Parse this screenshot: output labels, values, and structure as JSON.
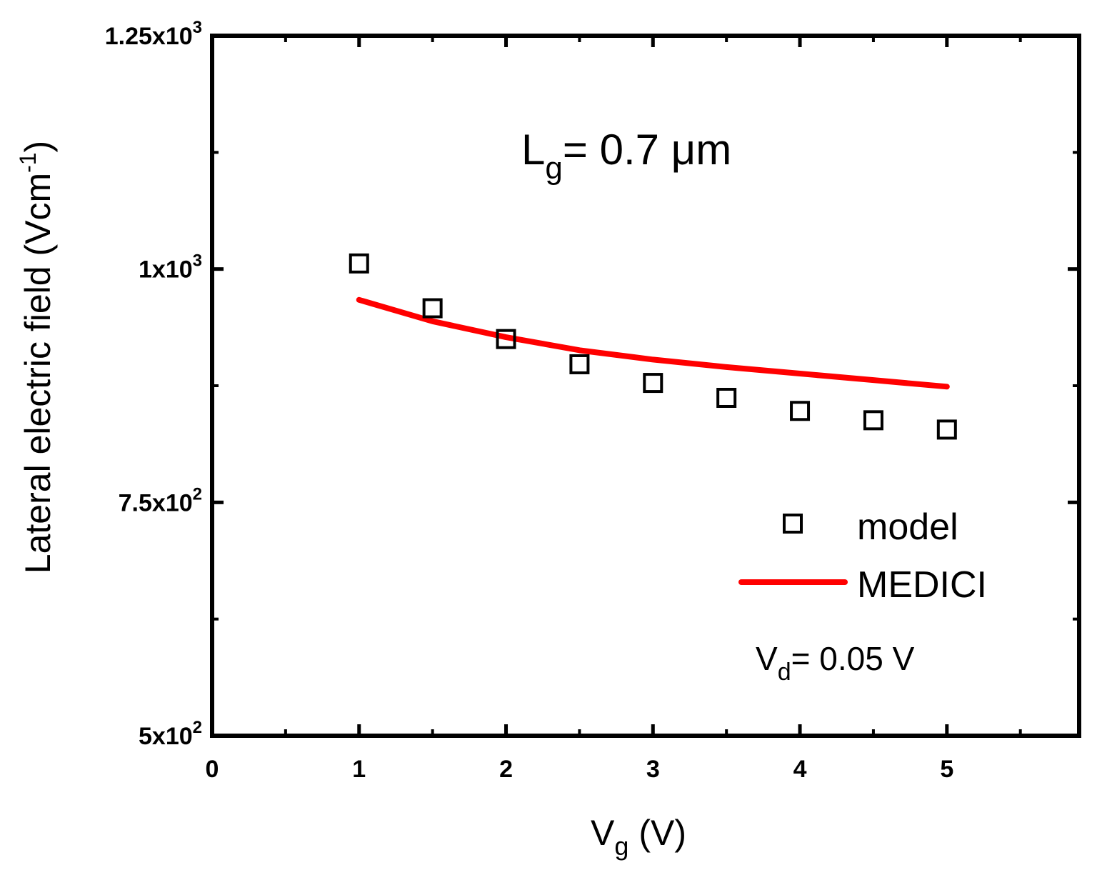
{
  "chart_data": {
    "type": "scatter",
    "xlabel": {
      "main": "V",
      "sub": "g",
      "rest": " (V)"
    },
    "ylabel": {
      "main": "Lateral electric field (Vcm",
      "sup": "-1",
      "rest": ")"
    },
    "xlim": [
      0,
      5.9
    ],
    "ylim": [
      500,
      1250
    ],
    "x_ticks": [
      {
        "value": 0,
        "label": "0"
      },
      {
        "value": 1,
        "label": "1"
      },
      {
        "value": 2,
        "label": "2"
      },
      {
        "value": 3,
        "label": "3"
      },
      {
        "value": 4,
        "label": "4"
      },
      {
        "value": 5,
        "label": "5"
      }
    ],
    "x_minor_ticks": [
      0.5,
      1.5,
      2.5,
      3.5,
      4.5,
      5.5
    ],
    "y_ticks": [
      {
        "value": 500,
        "mantissa": "5x10",
        "exp": "2"
      },
      {
        "value": 750,
        "mantissa": "7.5x10",
        "exp": "2"
      },
      {
        "value": 1000,
        "mantissa": "1x10",
        "exp": "3"
      },
      {
        "value": 1250,
        "mantissa": "1.25x10",
        "exp": "3"
      }
    ],
    "y_minor_ticks": [
      625,
      875,
      1125
    ],
    "series": [
      {
        "name": "model",
        "kind": "marker",
        "marker": "open-square",
        "color": "#000000",
        "x": [
          1,
          1.5,
          2,
          2.5,
          3,
          3.5,
          4,
          4.5,
          5
        ],
        "y": [
          1006,
          958,
          925,
          898,
          878,
          862,
          848,
          838,
          828
        ]
      },
      {
        "name": "MEDICI",
        "kind": "line",
        "color": "#ff0000",
        "x": [
          1,
          1.5,
          2,
          2.5,
          3,
          3.5,
          4,
          4.5,
          5
        ],
        "y": [
          967,
          944,
          927,
          913,
          903,
          895,
          888,
          881,
          874
        ]
      }
    ],
    "annotations": [
      {
        "id": "gate-length",
        "main": "L",
        "sub": "g",
        "rest": "= 0.7 μm"
      },
      {
        "id": "drain-voltage",
        "main": "V",
        "sub": "d",
        "rest": "= 0.05 V"
      }
    ],
    "legend": {
      "position": "lower-right",
      "entries": [
        "model",
        "MEDICI"
      ]
    }
  }
}
